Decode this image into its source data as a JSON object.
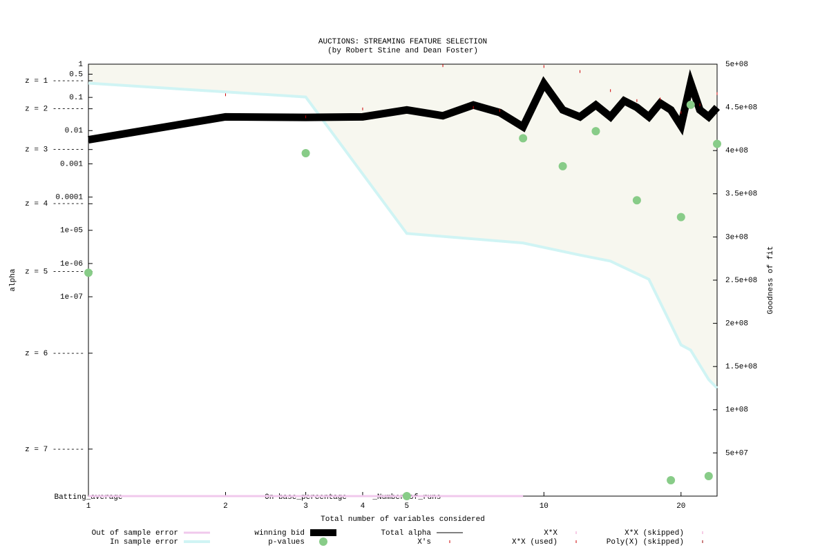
{
  "chart_data": {
    "type": "line",
    "title": "AUCTIONS: STREAMING FEATURE SELECTION",
    "subtitle": "(by Robert Stine and Dean Foster)",
    "x_label": "Total number of variables considered",
    "y_label": "alpha",
    "y2_label": "Goodness of fit",
    "xlog": true,
    "ylog": true,
    "xlim": [
      1,
      24
    ],
    "ylim": [
      1,
      1e-13
    ],
    "y2lim": [
      0,
      500000000
    ],
    "xticks": [
      1,
      2,
      3,
      4,
      5,
      10,
      20
    ],
    "yticks": [
      1,
      0.5,
      0.1,
      0.01,
      0.001,
      0.0001,
      {
        "value": 1e-05,
        "label": "1e-05"
      },
      {
        "value": 1e-06,
        "label": "1e-06"
      },
      {
        "value": 1e-07,
        "label": "1e-07"
      }
    ],
    "zticks": [
      {
        "value": 0.3173,
        "label": "z = 1 -------"
      },
      {
        "value": 0.0455,
        "label": "z = 2 -------"
      },
      {
        "value": 0.0027,
        "label": "z = 3 -------"
      },
      {
        "value": 6.3e-05,
        "label": "z = 4 -------"
      },
      {
        "value": 5.7e-07,
        "label": "z = 5 -------"
      },
      {
        "value": 2e-09,
        "label": "z = 6 -------"
      },
      {
        "value": 2.6e-12,
        "label": "z = 7 -------"
      }
    ],
    "y2ticks": [
      {
        "value": 50000000,
        "label": "5e+07"
      },
      {
        "value": 100000000,
        "label": "1e+08"
      },
      {
        "value": 150000000,
        "label": "1.5e+08"
      },
      {
        "value": 200000000,
        "label": "2e+08"
      },
      {
        "value": 250000000,
        "label": "2.5e+08"
      },
      {
        "value": 300000000,
        "label": "3e+08"
      },
      {
        "value": 350000000,
        "label": "3.5e+08"
      },
      {
        "value": 400000000,
        "label": "4e+08"
      },
      {
        "value": 450000000,
        "label": "4.5e+08"
      },
      {
        "value": 500000000,
        "label": "5e+08"
      }
    ],
    "variable_labels": [
      {
        "x": 1,
        "label": "Batting_average"
      },
      {
        "x": 3,
        "label": "On-base_percentage"
      },
      {
        "x": 5,
        "label": "_Number_of_runs"
      }
    ],
    "fill_color": "#f7f7ef",
    "series": [
      {
        "name": "Out of sample error",
        "color": "#f0c8ec",
        "style": "line",
        "width": 3,
        "axis": "y2",
        "x": [
          1,
          9
        ],
        "values": [
          0,
          0
        ]
      },
      {
        "name": "In sample error",
        "color": "#d0f4f4",
        "style": "line",
        "width": 4,
        "axis": "y2",
        "fill": true,
        "x": [
          1,
          3,
          5,
          9,
          12,
          14,
          17,
          20,
          21,
          23,
          24
        ],
        "values": [
          478000000,
          462000000,
          304000000,
          293000000,
          279000000,
          272000000,
          251000000,
          175000000,
          169000000,
          135000000,
          125000000
        ]
      },
      {
        "name": "winning bid",
        "color": "#000000",
        "style": "line",
        "width": 11,
        "x": [
          1,
          2,
          3,
          4,
          5,
          6,
          7,
          8,
          9,
          10,
          11,
          12,
          13,
          14,
          15,
          16,
          17,
          18,
          19,
          20,
          21,
          22,
          23,
          24
        ],
        "values": [
          0.0053,
          0.026,
          0.025,
          0.026,
          0.042,
          0.028,
          0.059,
          0.035,
          0.013,
          0.26,
          0.042,
          0.026,
          0.059,
          0.026,
          0.079,
          0.05,
          0.026,
          0.067,
          0.042,
          0.014,
          0.27,
          0.042,
          0.026,
          0.05
        ]
      },
      {
        "name": "p-values",
        "color": "#88cc88",
        "style": "points",
        "width": 6,
        "x": [
          1,
          3,
          5,
          9,
          11,
          13,
          16,
          19,
          20,
          21,
          23,
          24
        ],
        "values": [
          5.3e-07,
          0.0021,
          1e-13,
          0.0059,
          0.00085,
          0.0096,
          8e-05,
          3e-13,
          2.5e-05,
          0.06,
          4e-13,
          0.004
        ]
      },
      {
        "name": "Total alpha",
        "color": "#000000",
        "style": "line",
        "width": 1,
        "x": [],
        "values": []
      },
      {
        "name": "X's",
        "color": "#cc0000",
        "style": "ticks",
        "width": 1,
        "x": [
          2,
          3,
          4,
          6,
          7,
          8,
          10,
          12,
          14,
          16,
          18,
          20,
          22,
          24
        ],
        "values": [
          0.12,
          0.026,
          0.045,
          0.9,
          0.05,
          0.04,
          0.85,
          0.6,
          0.16,
          0.08,
          0.09,
          0.035,
          0.06,
          0.13
        ]
      },
      {
        "name": "X*X",
        "color": "#ee99cc",
        "style": "ticks",
        "width": 1,
        "x": [],
        "values": []
      },
      {
        "name": "X*X (used)",
        "color": "#cc0000",
        "style": "ticks",
        "width": 1,
        "x": [],
        "values": []
      },
      {
        "name": "X*X (skipped)",
        "color": "#ee99cc",
        "style": "ticks",
        "width": 1,
        "x": [],
        "values": []
      },
      {
        "name": "Poly(X) (skipped)",
        "color": "#990000",
        "style": "ticks",
        "width": 1,
        "x": [],
        "values": []
      }
    ]
  }
}
